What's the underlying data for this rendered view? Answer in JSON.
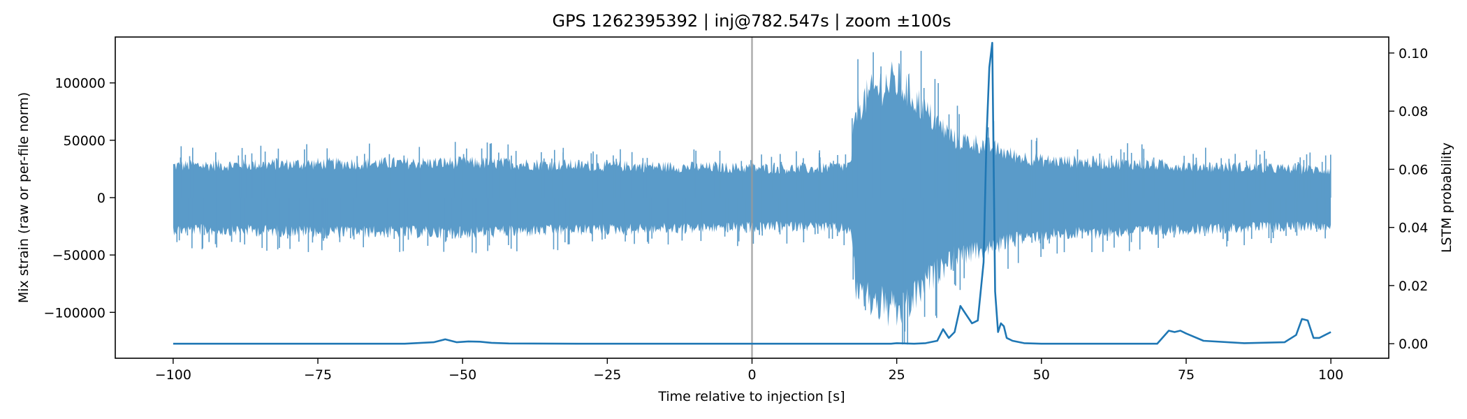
{
  "chart_data": {
    "type": "line",
    "title": "GPS 1262395392 | inj@782.547s | zoom ±100s",
    "xlabel": "Time relative to injection [s]",
    "ylabel_left": "Mix strain (raw or per-file norm)",
    "ylabel_right": "LSTM probability",
    "xlim": [
      -110,
      110
    ],
    "ylim_left": [
      -140000,
      140000
    ],
    "ylim_right": [
      -0.005,
      0.1055
    ],
    "x_ticks": [
      -100,
      -75,
      -50,
      -25,
      0,
      25,
      50,
      75,
      100
    ],
    "y_left_ticks": [
      -100000,
      -50000,
      0,
      50000,
      100000
    ],
    "y_right_ticks": [
      0.0,
      0.02,
      0.04,
      0.06,
      0.08,
      0.1
    ],
    "y_right_tick_labels": [
      "0.00",
      "0.02",
      "0.04",
      "0.06",
      "0.08",
      "0.10"
    ],
    "grid": false,
    "injection_marker_x": 0,
    "colors": {
      "strain": "#5a9bc9",
      "probability": "#1f77b4",
      "marker": "#999999"
    },
    "strain_envelope": {
      "x": [
        -100,
        -75,
        -50,
        -25,
        0,
        10,
        17,
        18,
        20,
        22,
        25,
        28,
        30,
        35,
        40,
        45,
        50,
        75,
        100
      ],
      "upper": [
        30000,
        32000,
        33000,
        30000,
        28000,
        27000,
        30000,
        85000,
        95000,
        105000,
        110000,
        95000,
        80000,
        55000,
        50000,
        40000,
        35000,
        30000,
        26000
      ],
      "lower": [
        -30000,
        -32000,
        -33000,
        -30000,
        -28000,
        -27000,
        -30000,
        -85000,
        -95000,
        -100000,
        -110000,
        -95000,
        -80000,
        -55000,
        -50000,
        -40000,
        -35000,
        -30000,
        -26000
      ]
    },
    "series": [
      {
        "x": [
          -100,
          -60,
          -55,
          -53,
          -51,
          -49,
          -47,
          -45,
          -42,
          -30,
          0,
          20,
          24,
          25,
          28,
          30,
          32,
          33,
          34,
          35,
          36,
          37,
          38,
          39,
          40,
          40.5,
          41,
          41.5,
          42,
          42.5,
          43,
          43.5,
          44,
          45,
          47,
          50,
          60,
          70,
          72,
          73,
          74,
          75,
          78,
          85,
          92,
          94,
          95,
          96,
          97,
          98,
          99,
          100
        ],
        "values": [
          0.0,
          0.0,
          0.0005,
          0.0015,
          0.0005,
          0.0008,
          0.0007,
          0.0003,
          0.0001,
          0.0,
          0.0,
          0.0,
          0.0,
          0.0002,
          0.0,
          0.0002,
          0.001,
          0.005,
          0.002,
          0.004,
          0.013,
          0.01,
          0.007,
          0.008,
          0.028,
          0.07,
          0.095,
          0.1035,
          0.018,
          0.004,
          0.007,
          0.006,
          0.002,
          0.001,
          0.0002,
          0.0,
          0.0,
          0.0,
          0.0045,
          0.004,
          0.0045,
          0.0035,
          0.001,
          0.0002,
          0.0005,
          0.003,
          0.0085,
          0.008,
          0.002,
          0.002,
          0.003,
          0.004
        ]
      }
    ]
  }
}
